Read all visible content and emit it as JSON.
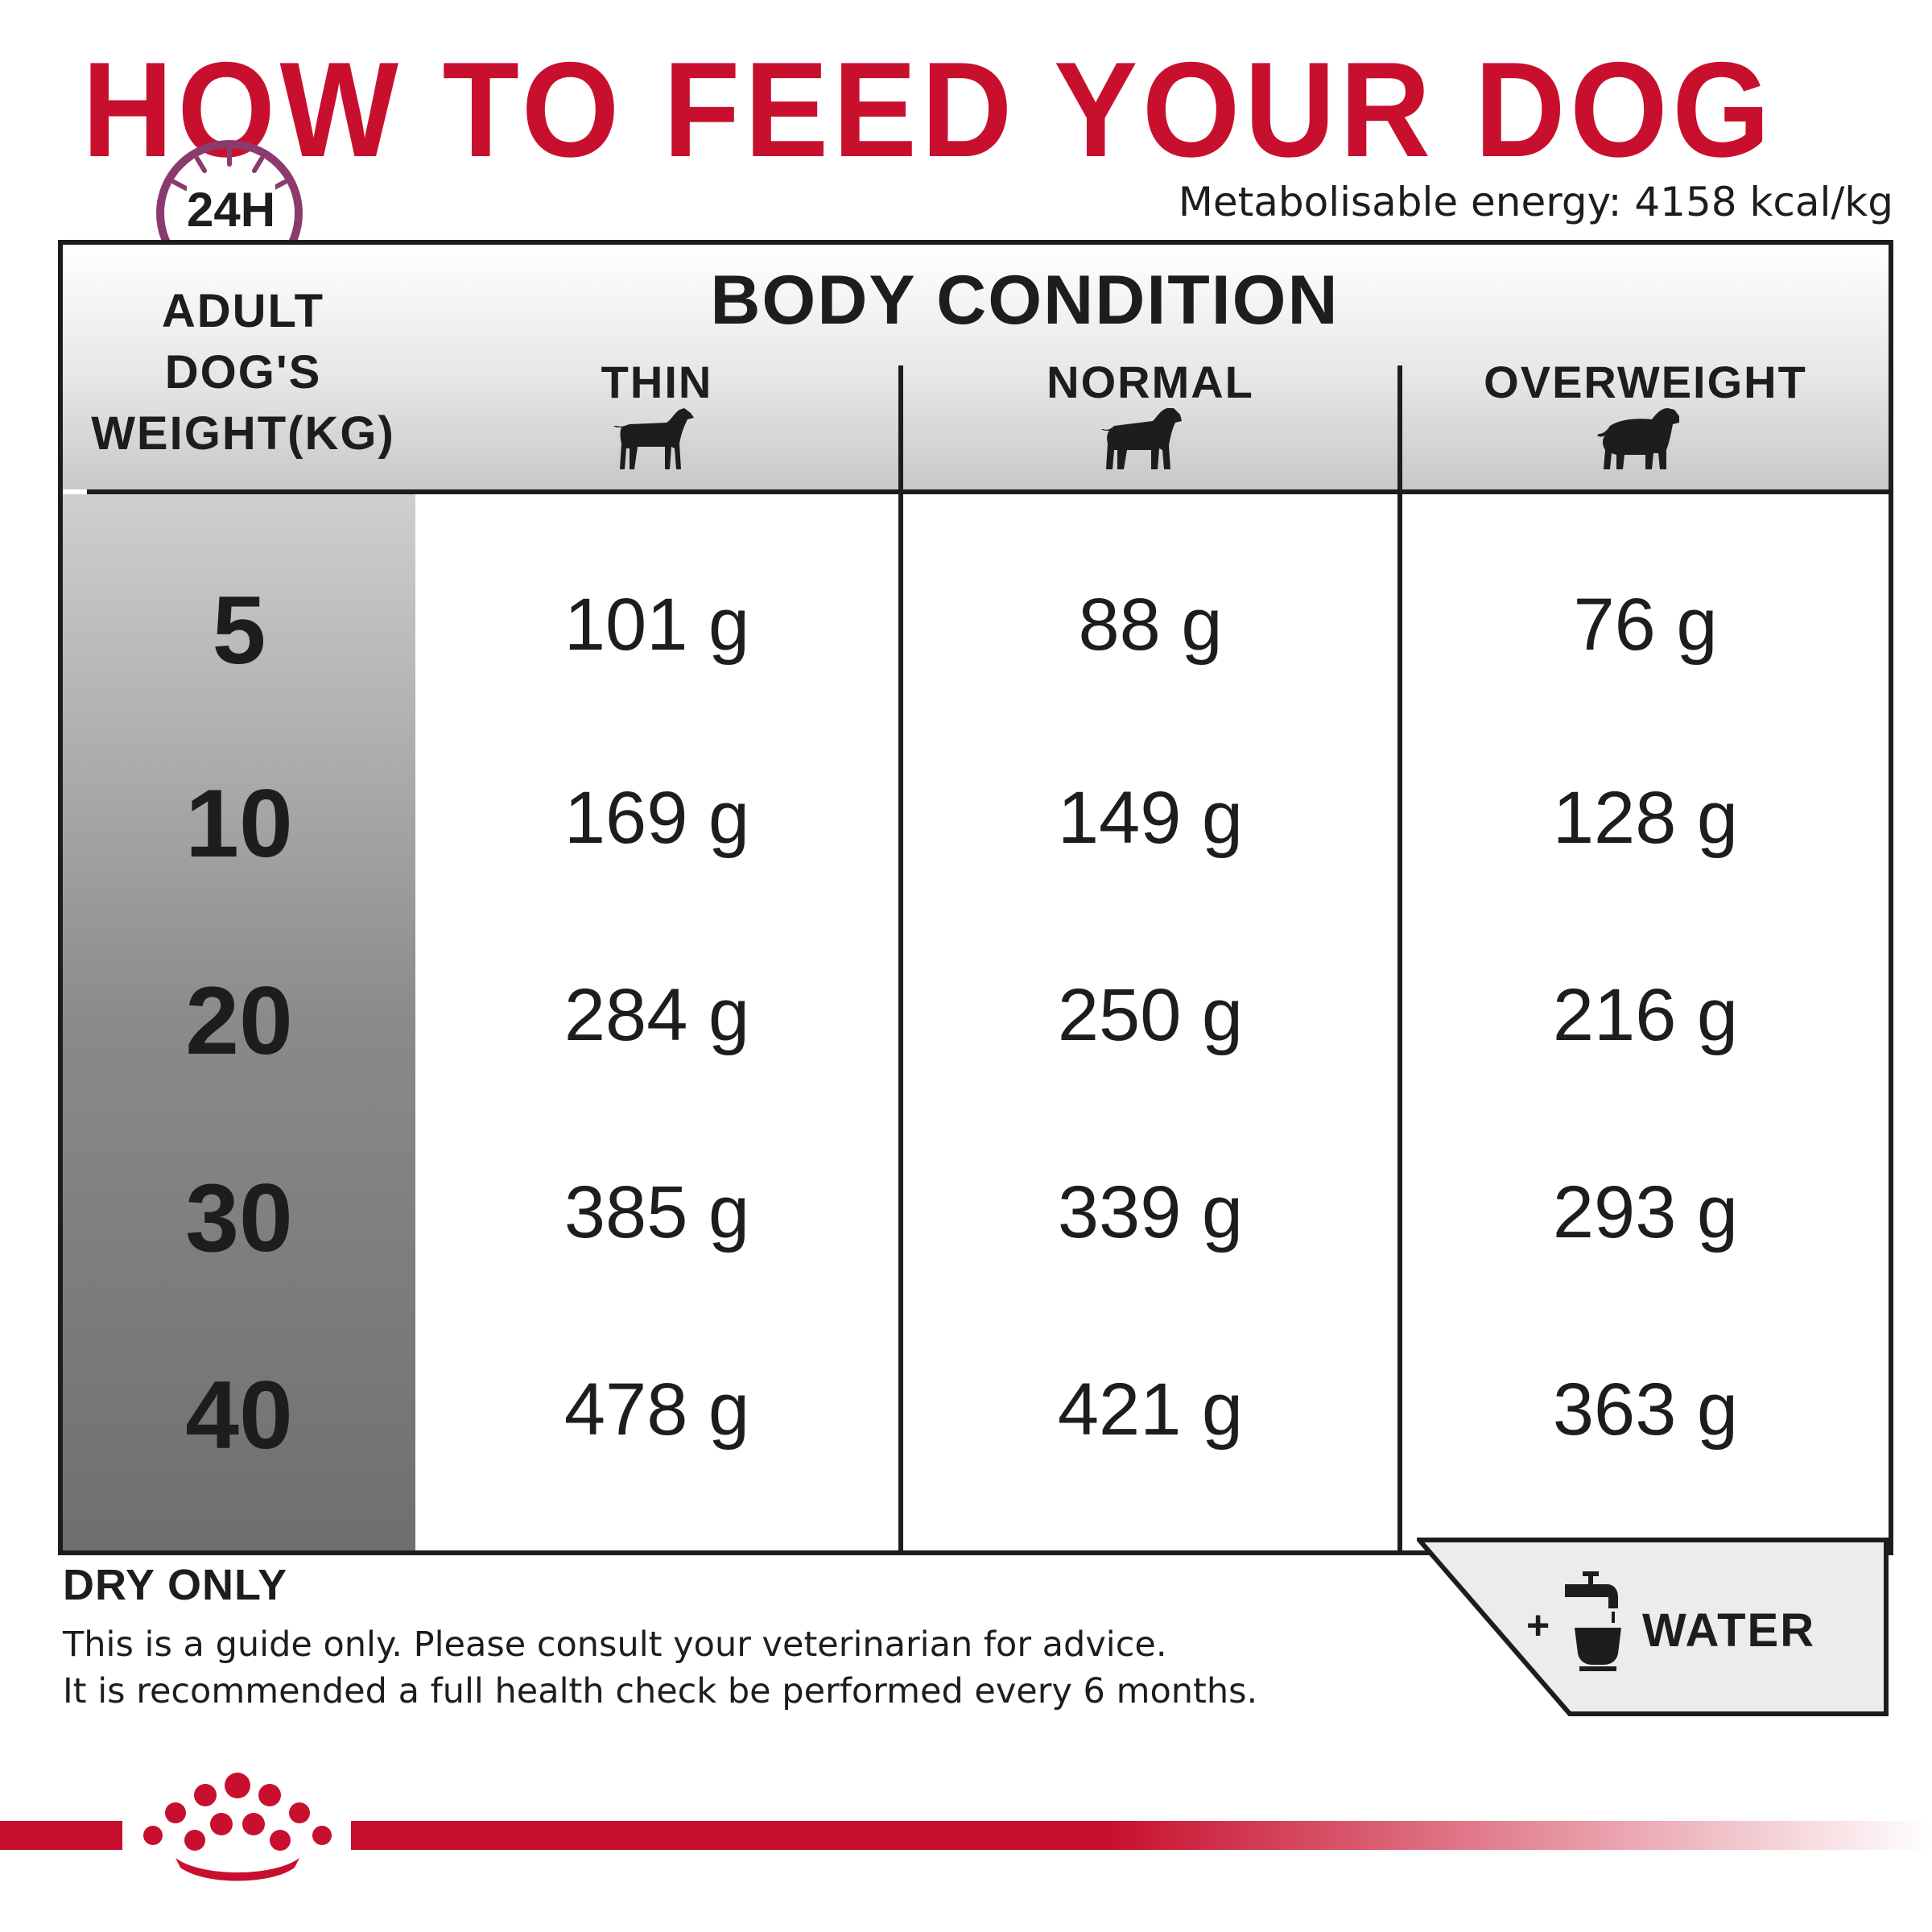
{
  "title": "HOW TO FEED YOUR DOG",
  "clock_label": "24H",
  "energy": "Metabolisable energy: 4158 kcal/kg",
  "table": {
    "weight_header": [
      "ADULT",
      "DOG'S",
      "WEIGHT(KG)"
    ],
    "body_condition": "BODY CONDITION",
    "columns": [
      "THIN",
      "NORMAL",
      "OVERWEIGHT"
    ],
    "rows": [
      {
        "weight": "5",
        "thin": "101 g",
        "normal": "88 g",
        "overweight": "76 g"
      },
      {
        "weight": "10",
        "thin": "169 g",
        "normal": "149 g",
        "overweight": "128 g"
      },
      {
        "weight": "20",
        "thin": "284 g",
        "normal": "250 g",
        "overweight": "216 g"
      },
      {
        "weight": "30",
        "thin": "385 g",
        "normal": "339 g",
        "overweight": "293 g"
      },
      {
        "weight": "40",
        "thin": "478 g",
        "normal": "421 g",
        "overweight": "363 g"
      }
    ]
  },
  "footer": {
    "dry_only": "DRY ONLY",
    "note_line1": "This is a guide only. Please consult your veterinarian for advice.",
    "note_line2": "It is recommended a full health check be performed every 6 months.",
    "water_plus": "+",
    "water": "WATER"
  },
  "colors": {
    "brand_red": "#c8102e",
    "clock_purple": "#8b3a6e",
    "text": "#1d1d1b"
  },
  "icons": [
    "clock-icon",
    "thin-dog-icon",
    "normal-dog-icon",
    "overweight-dog-icon",
    "water-tap-bowl-icon",
    "crown-logo"
  ]
}
